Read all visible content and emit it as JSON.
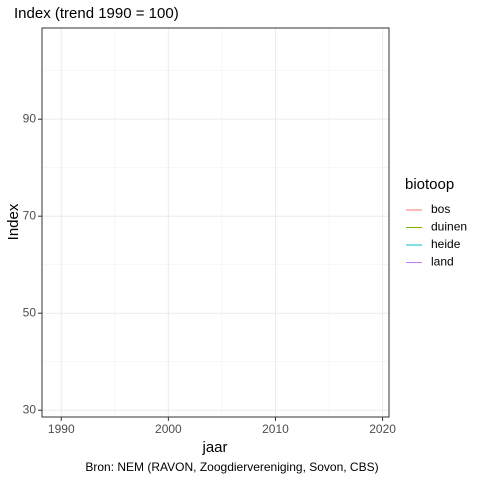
{
  "chart_data": {
    "type": "line",
    "title": "Index (trend 1990 = 100)",
    "caption": "Bron: NEM (RAVON, Zoogdiervereniging, Sovon, CBS)",
    "xlabel": "jaar",
    "ylabel": "Index",
    "legend_title": "biotoop",
    "legend": "right",
    "x": [],
    "series": [
      {
        "name": "bos",
        "color": "#F8766D",
        "values": []
      },
      {
        "name": "duinen",
        "color": "#7CAE00",
        "values": []
      },
      {
        "name": "heide",
        "color": "#00BFC4",
        "values": []
      },
      {
        "name": "land",
        "color": "#C77CFF",
        "values": []
      }
    ],
    "xlim": [
      1988.2,
      2020.6
    ],
    "xticks": [
      1990,
      2000,
      2010,
      2020
    ],
    "xticks_minor": [
      1995,
      2005,
      2015
    ],
    "ylim": [
      28.6,
      108.8
    ],
    "yticks": [
      30,
      50,
      70,
      90
    ],
    "yticks_minor": [
      40,
      60,
      80,
      100
    ],
    "grid": true
  }
}
